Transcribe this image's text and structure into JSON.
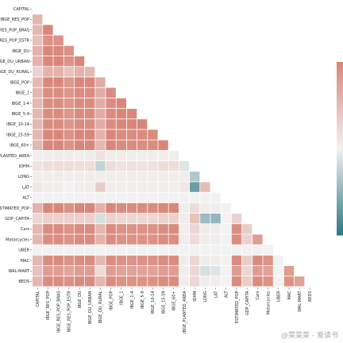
{
  "chart_data": {
    "type": "heatmap",
    "title": "",
    "xlabel": "",
    "ylabel": "",
    "mask": "upper-triangle",
    "colorbar": {
      "position": "right",
      "ticks_shown": false
    },
    "colors": {
      "negative": "#2f7a85",
      "neutral": "#f2f2f2",
      "positive": "#d9877a"
    },
    "vmin": -1,
    "vmax": 1,
    "labels": [
      "CAPITAL",
      "IBGE_RES_POP",
      "IBGE_RES_POP_BRAS",
      "IBGE_RES_POP_ESTR",
      "IBGE_DU",
      "IBGE_DU_URBAN",
      "IBGE_DU_RURAL",
      "IBGE_POP",
      "IBGE_1",
      "IBGE_1-4",
      "IBGE_5-9",
      "IBGE_10-14",
      "IBGE_15-59",
      "IBGE_60+",
      "IBGE_PLANTED_AREA",
      "IDHM",
      "LONG",
      "LAT",
      "ALT",
      "ESTIMATED_POP",
      "GDP_CAPITA",
      "Cars",
      "Motorcycles",
      "UBER",
      "MAC",
      "WAL-MART",
      "BEDS"
    ],
    "matrix": [
      [],
      [
        0.55
      ],
      [
        0.55,
        1.0
      ],
      [
        0.45,
        0.9,
        0.9
      ],
      [
        0.6,
        1.0,
        1.0,
        0.9
      ],
      [
        0.6,
        1.0,
        1.0,
        0.9,
        1.0
      ],
      [
        0.3,
        0.6,
        0.6,
        0.45,
        0.6,
        0.55
      ],
      [
        0.55,
        1.0,
        1.0,
        0.85,
        1.0,
        1.0,
        0.65
      ],
      [
        0.55,
        0.95,
        0.95,
        0.85,
        0.95,
        0.95,
        0.65,
        0.95
      ],
      [
        0.55,
        0.95,
        0.95,
        0.85,
        0.95,
        0.95,
        0.65,
        0.95,
        1.0
      ],
      [
        0.55,
        0.95,
        0.95,
        0.85,
        0.95,
        0.95,
        0.65,
        0.95,
        1.0,
        1.0
      ],
      [
        0.55,
        0.95,
        0.95,
        0.85,
        0.95,
        0.95,
        0.65,
        0.95,
        1.0,
        1.0,
        1.0
      ],
      [
        0.55,
        1.0,
        1.0,
        0.9,
        1.0,
        1.0,
        0.6,
        1.0,
        0.95,
        0.95,
        0.95,
        0.95
      ],
      [
        0.55,
        1.0,
        1.0,
        0.9,
        1.0,
        1.0,
        0.55,
        1.0,
        0.95,
        0.95,
        0.95,
        0.95,
        1.0
      ],
      [
        0.05,
        0.05,
        0.05,
        0.05,
        0.05,
        0.05,
        0.15,
        0.05,
        0.05,
        0.05,
        0.05,
        0.05,
        0.05,
        0.05
      ],
      [
        0.15,
        0.2,
        0.2,
        0.2,
        0.2,
        0.2,
        -0.25,
        0.2,
        0.15,
        0.15,
        0.15,
        0.15,
        0.2,
        0.2,
        -0.1
      ],
      [
        0.05,
        0.05,
        0.05,
        0.05,
        0.05,
        0.05,
        0.05,
        0.05,
        0.05,
        0.05,
        0.05,
        0.05,
        0.05,
        0.05,
        0.05,
        -0.35
      ],
      [
        0.1,
        0.05,
        0.05,
        0.0,
        0.05,
        0.05,
        0.35,
        0.05,
        0.05,
        0.05,
        0.05,
        0.05,
        0.05,
        0.05,
        0.1,
        -0.7,
        0.5
      ],
      [
        0.0,
        0.0,
        0.0,
        0.0,
        0.0,
        0.0,
        0.0,
        0.0,
        0.0,
        0.0,
        0.0,
        0.0,
        0.0,
        0.0,
        0.0,
        0.0,
        0.0,
        0.0
      ],
      [
        0.6,
        1.0,
        1.0,
        0.9,
        1.0,
        1.0,
        0.6,
        1.0,
        0.95,
        0.95,
        0.95,
        0.95,
        1.0,
        1.0,
        0.05,
        0.2,
        0.05,
        0.05,
        0.0
      ],
      [
        0.25,
        0.3,
        0.3,
        0.3,
        0.3,
        0.3,
        -0.15,
        0.3,
        0.25,
        0.25,
        0.25,
        0.25,
        0.3,
        0.3,
        0.05,
        0.45,
        -0.45,
        -0.5,
        0.0,
        0.3
      ],
      [
        0.55,
        0.95,
        0.95,
        0.9,
        0.95,
        0.95,
        0.55,
        0.95,
        0.9,
        0.9,
        0.9,
        0.9,
        0.95,
        0.95,
        0.05,
        0.25,
        0.05,
        0.05,
        0.0,
        0.95,
        0.35
      ],
      [
        0.55,
        0.95,
        0.95,
        0.9,
        0.95,
        0.95,
        0.6,
        0.95,
        0.9,
        0.9,
        0.9,
        0.9,
        0.95,
        0.95,
        0.05,
        0.2,
        0.05,
        0.05,
        0.0,
        0.95,
        0.3,
        0.8
      ],
      [
        0.0,
        0.0,
        0.0,
        0.0,
        0.0,
        0.0,
        0.0,
        0.0,
        0.0,
        0.0,
        0.0,
        0.0,
        0.0,
        0.0,
        0.0,
        0.0,
        0.0,
        0.0,
        0.0,
        0.0,
        0.0,
        0.0,
        0.0
      ],
      [
        0.55,
        0.95,
        0.95,
        0.9,
        0.95,
        0.95,
        0.55,
        0.95,
        0.9,
        0.9,
        0.9,
        0.9,
        0.95,
        0.95,
        0.05,
        0.25,
        0.05,
        0.05,
        0.0,
        0.95,
        0.35,
        0.95,
        0.9,
        0.0
      ],
      [
        0.45,
        0.8,
        0.8,
        0.7,
        0.8,
        0.8,
        0.2,
        0.8,
        0.75,
        0.75,
        0.75,
        0.75,
        0.8,
        0.8,
        0.05,
        0.25,
        -0.15,
        -0.1,
        0.0,
        0.8,
        0.25,
        0.8,
        0.75,
        0.0,
        0.8
      ],
      [
        0.55,
        0.95,
        0.95,
        0.9,
        0.95,
        0.95,
        0.55,
        0.95,
        0.9,
        0.9,
        0.9,
        0.9,
        0.95,
        0.95,
        0.05,
        0.25,
        0.05,
        0.05,
        0.0,
        0.95,
        0.35,
        0.95,
        0.9,
        0.0,
        0.9,
        0.75
      ]
    ]
  },
  "watermark": "@菜菜菜 - 爱读书"
}
